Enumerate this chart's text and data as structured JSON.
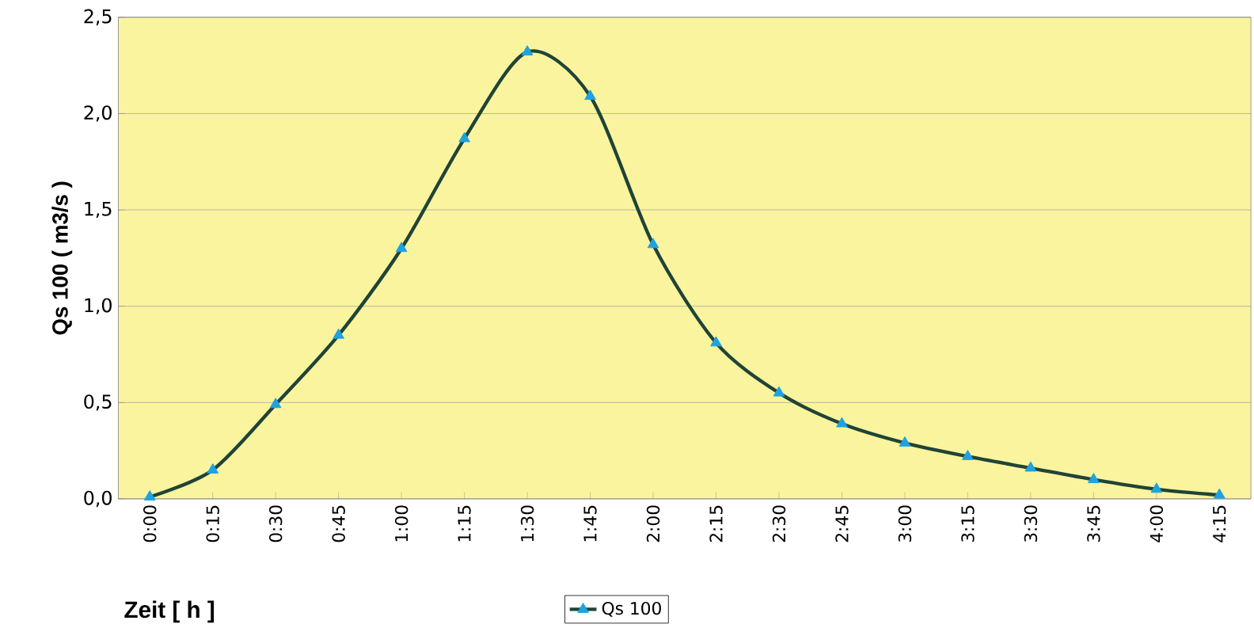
{
  "chart_data": {
    "type": "line",
    "xlabel": "Zeit [ h ]",
    "ylabel": "Qs 100 ( m3/s )",
    "categories": [
      "0:00",
      "0:15",
      "0:30",
      "0:45",
      "1:00",
      "1:15",
      "1:30",
      "1:45",
      "2:00",
      "2:15",
      "2:30",
      "2:45",
      "3:00",
      "3:15",
      "3:30",
      "3:45",
      "4:00",
      "4:15"
    ],
    "series": [
      {
        "name": "Qs 100",
        "color": "#1f4437",
        "values": [
          0.01,
          0.15,
          0.49,
          0.85,
          1.3,
          1.87,
          2.32,
          2.09,
          1.32,
          0.81,
          0.55,
          0.39,
          0.29,
          0.22,
          0.16,
          0.1,
          0.05,
          0.02
        ]
      }
    ],
    "ylim": [
      0,
      2.5
    ],
    "yticks": [
      {
        "value": 0,
        "label": "0,0"
      },
      {
        "value": 0.5,
        "label": "0,5"
      },
      {
        "value": 1,
        "label": "1,0"
      },
      {
        "value": 1.5,
        "label": "1,5"
      },
      {
        "value": 2,
        "label": "2,0"
      },
      {
        "value": 2.5,
        "label": "2,5"
      }
    ],
    "grid": "y",
    "legend": "bottom",
    "marker": "triangle",
    "line_style": "solid"
  }
}
